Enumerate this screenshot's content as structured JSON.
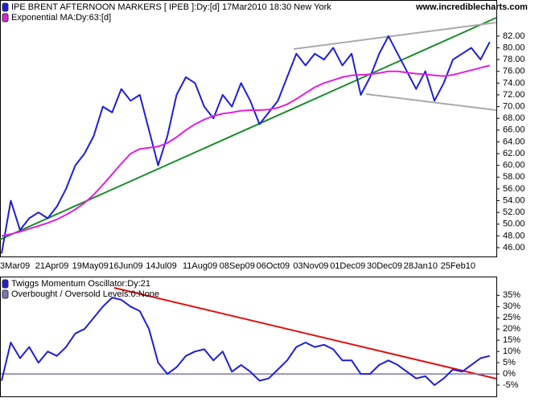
{
  "chart_data": [
    {
      "type": "line",
      "annotation": "www.incrediblecharts.com",
      "categories": [
        "3Mar09",
        null,
        null,
        null,
        "21Apr09",
        null,
        null,
        null,
        "19May09",
        null,
        null,
        null,
        "16Jun09",
        null,
        null,
        null,
        "14Jul09",
        null,
        null,
        null,
        "11Aug09",
        null,
        null,
        null,
        "08Sep09",
        null,
        null,
        null,
        "06Oct09",
        null,
        null,
        null,
        "03Nov09",
        null,
        null,
        null,
        "01Dec09",
        null,
        null,
        null,
        "30Dec09",
        null,
        null,
        null,
        "28Jan10",
        null,
        null,
        null,
        "25Feb10",
        null,
        null,
        null,
        null,
        null
      ],
      "series": [
        {
          "name": "IPE BRENT AFTERNOON MARKERS [ IPEB ]:Dy:[d]  17Mar2010 18:30 New York",
          "color": "#1f1fd6",
          "values": [
            45,
            54,
            49,
            51,
            52,
            51,
            53,
            56,
            60,
            62,
            65,
            70,
            69,
            73,
            71,
            72,
            66,
            60,
            65,
            72,
            75,
            74,
            70,
            68,
            72,
            70,
            74,
            71,
            67,
            69,
            71,
            75,
            79,
            77,
            79,
            78,
            80,
            77,
            79,
            72,
            75,
            79,
            82,
            79,
            76,
            73,
            76,
            71,
            74,
            78,
            79,
            80,
            78,
            81
          ]
        },
        {
          "name": "Exponential MA:Dy:63:[d]",
          "color": "#e020e0",
          "values": [
            48,
            48.3,
            48.7,
            49.2,
            49.7,
            50.2,
            50.8,
            51.6,
            52.5,
            53.6,
            55,
            56.7,
            58.5,
            60.3,
            62,
            62.8,
            63,
            63.2,
            63.8,
            64.8,
            66,
            67,
            67.8,
            68.4,
            68.8,
            69,
            69.3,
            69.4,
            69.4,
            69.5,
            69.8,
            70.4,
            71.3,
            72.3,
            73.3,
            74,
            74.5,
            75,
            75.3,
            75.4,
            75.5,
            75.7,
            76,
            76,
            75.8,
            75.6,
            75.5,
            75.3,
            75.2,
            75.4,
            75.8,
            76.2,
            76.6,
            77
          ]
        }
      ],
      "ylim": [
        44.5,
        88
      ],
      "yticks": [
        {
          "value": 46,
          "label": "46.00"
        },
        {
          "value": 48,
          "label": "48.00"
        },
        {
          "value": 50,
          "label": "50.00"
        },
        {
          "value": 52,
          "label": "52.00"
        },
        {
          "value": 54,
          "label": "54.00"
        },
        {
          "value": 56,
          "label": "56.00"
        },
        {
          "value": 58,
          "label": "58.00"
        },
        {
          "value": 60,
          "label": "60.00"
        },
        {
          "value": 62,
          "label": "62.00"
        },
        {
          "value": 64,
          "label": "64.00"
        },
        {
          "value": 66,
          "label": "66.00"
        },
        {
          "value": 68,
          "label": "68.00"
        },
        {
          "value": 70,
          "label": "70.00"
        },
        {
          "value": 72,
          "label": "72.00"
        },
        {
          "value": 74,
          "label": "74.00"
        },
        {
          "value": 76,
          "label": "76.00"
        },
        {
          "value": 78,
          "label": "78.00"
        },
        {
          "value": 80,
          "label": "80.00"
        },
        {
          "value": 82,
          "label": "82.00"
        }
      ]
    },
    {
      "type": "line",
      "series": [
        {
          "name": "Twiggs Momentum Oscillator:Dy:21",
          "color": "#1f1fd6",
          "values": [
            -3,
            14,
            7,
            12,
            5,
            10,
            8,
            12,
            18,
            20,
            25,
            30,
            34,
            33,
            30,
            28,
            20,
            5,
            0,
            3,
            8,
            10,
            11,
            6,
            10,
            1,
            4,
            1,
            -3,
            -2,
            2,
            6,
            12,
            14,
            12,
            13,
            11,
            6,
            6,
            0,
            0,
            4,
            6,
            4,
            1,
            -2,
            -1,
            -5,
            -2,
            2,
            1,
            4,
            7,
            8
          ]
        }
      ],
      "levels": [
        {
          "name": "Overbought / Oversold Levels:0:None",
          "color": "#7878b8",
          "value": 0
        }
      ],
      "ylim": [
        -10,
        43
      ],
      "yticks": [
        {
          "value": -5,
          "label": "-5%"
        },
        {
          "value": 0,
          "label": "0%"
        },
        {
          "value": 5,
          "label": "5%"
        },
        {
          "value": 10,
          "label": "10%"
        },
        {
          "value": 15,
          "label": "15%"
        },
        {
          "value": 20,
          "label": "20%"
        },
        {
          "value": 25,
          "label": "25%"
        },
        {
          "value": 30,
          "label": "30%"
        },
        {
          "value": 35,
          "label": "35%"
        }
      ]
    }
  ]
}
